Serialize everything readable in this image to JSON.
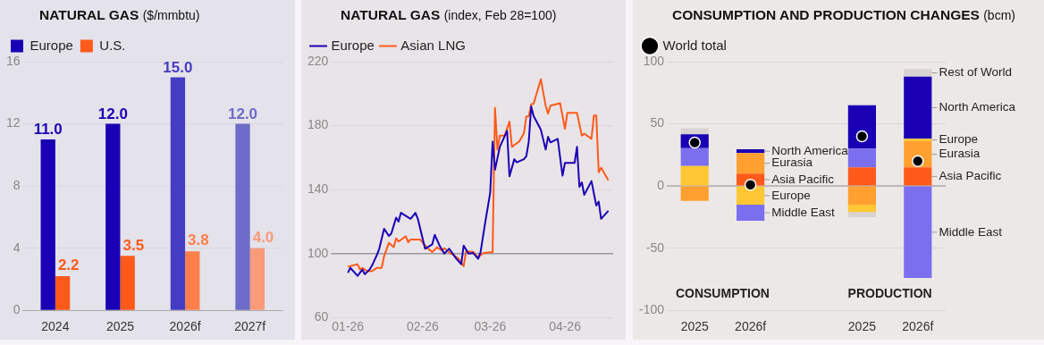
{
  "chart_data": [
    {
      "type": "bar",
      "title": "NATURAL GAS ($/mmbtu)",
      "categories": [
        "2024",
        "2025",
        "2026f",
        "2027f"
      ],
      "series": [
        {
          "name": "Europe",
          "color": "#1a00b4",
          "colors": [
            "#1a00b4",
            "#1a00b4",
            "#453cc4",
            "#6e6cc8"
          ],
          "values": [
            11,
            12,
            15,
            12
          ],
          "value_labels": [
            "11.0",
            "12.0",
            "15.0",
            "12.0"
          ]
        },
        {
          "name": "U.S.",
          "color": "#ff5a1a",
          "colors": [
            "#ff5a1a",
            "#ff5a1a",
            "#ff7f4a",
            "#f99a78"
          ],
          "values": [
            2.2,
            3.5,
            3.8,
            4
          ],
          "value_labels": [
            "2.2",
            "3.5",
            "3.8",
            "4.0"
          ]
        }
      ],
      "ylim": [
        0,
        16
      ],
      "yticks": [
        0,
        4,
        8,
        12,
        16
      ],
      "grid": "y",
      "legend": "top left"
    },
    {
      "type": "line",
      "title": "NATURAL GAS (index, Feb 28=100)",
      "series": [
        {
          "name": "Europe",
          "color": "#1a00b4",
          "x": [
            "2026-01-01",
            "2026-01-02",
            "2026-01-05",
            "2026-01-07",
            "2026-01-08",
            "2026-01-10",
            "2026-01-11",
            "2026-01-13",
            "2026-01-14",
            "2026-01-16",
            "2026-01-18",
            "2026-01-19",
            "2026-01-21",
            "2026-01-22",
            "2026-01-23",
            "2026-01-27",
            "2026-01-29",
            "2026-01-30",
            "2026-02-02",
            "2026-02-05",
            "2026-02-06",
            "2026-02-08",
            "2026-02-10",
            "2026-02-12",
            "2026-02-15",
            "2026-02-17",
            "2026-02-18",
            "2026-02-20",
            "2026-02-22",
            "2026-02-24",
            "2026-02-25",
            "2026-02-27",
            "2026-03-01",
            "2026-03-02",
            "2026-03-03",
            "2026-03-05",
            "2026-03-08",
            "2026-03-09",
            "2026-03-11",
            "2026-03-12",
            "2026-03-15",
            "2026-03-16",
            "2026-03-17",
            "2026-03-18",
            "2026-03-19",
            "2026-03-22",
            "2026-03-24",
            "2026-03-25",
            "2026-03-26",
            "2026-03-29",
            "2026-03-31",
            "2026-04-01",
            "2026-04-05",
            "2026-04-06",
            "2026-04-07",
            "2026-04-08",
            "2026-04-09",
            "2026-04-12",
            "2026-04-14",
            "2026-04-15",
            "2026-04-16",
            "2026-04-19"
          ],
          "values": [
            88,
            91,
            86,
            90,
            87,
            90,
            92.5,
            99,
            103,
            115.5,
            111,
            112.5,
            122.5,
            120,
            125.5,
            121.7,
            125.5,
            121.7,
            103,
            105.8,
            111.7,
            105,
            100,
            103,
            96.7,
            93.3,
            105,
            100,
            100.3,
            96.7,
            100.8,
            120,
            138,
            170,
            152.5,
            166.7,
            176.7,
            148.3,
            159,
            157,
            159,
            161,
            170,
            192,
            186,
            177.5,
            165,
            173,
            169.5,
            171.7,
            148.7,
            156.7,
            156.7,
            166.7,
            141.7,
            144.5,
            136.7,
            145.3,
            130,
            132.5,
            121.7,
            126.7
          ]
        },
        {
          "name": "Asian LNG",
          "color": "#ff5a1a",
          "x": [
            "2026-01-01",
            "2026-01-05",
            "2026-01-06",
            "2026-01-07",
            "2026-01-09",
            "2026-01-11",
            "2026-01-13",
            "2026-01-15",
            "2026-01-16",
            "2026-01-18",
            "2026-01-20",
            "2026-01-21",
            "2026-01-22",
            "2026-01-25",
            "2026-01-26",
            "2026-01-27",
            "2026-01-29",
            "2026-01-31",
            "2026-02-03",
            "2026-02-05",
            "2026-02-07",
            "2026-02-09",
            "2026-02-10",
            "2026-02-12",
            "2026-02-16",
            "2026-02-18",
            "2026-02-19",
            "2026-02-22",
            "2026-02-24",
            "2026-02-26",
            "2026-03-01",
            "2026-03-02",
            "2026-03-03",
            "2026-03-04",
            "2026-03-05",
            "2026-03-07",
            "2026-03-09",
            "2026-03-10",
            "2026-03-12",
            "2026-03-13",
            "2026-03-15",
            "2026-03-16",
            "2026-03-17",
            "2026-03-18",
            "2026-03-19",
            "2026-03-22",
            "2026-03-24",
            "2026-03-25",
            "2026-03-26",
            "2026-03-30",
            "2026-04-01",
            "2026-04-02",
            "2026-04-06",
            "2026-04-08",
            "2026-04-09",
            "2026-04-12",
            "2026-04-13",
            "2026-04-14",
            "2026-04-15",
            "2026-04-16",
            "2026-04-19"
          ],
          "values": [
            91.7,
            93.3,
            90,
            91,
            89,
            89,
            91,
            91,
            98.3,
            106.7,
            104,
            109.5,
            107.5,
            110.8,
            107,
            108.8,
            108.7,
            108.7,
            103.3,
            101,
            103.8,
            102,
            103.3,
            100.8,
            96.7,
            92,
            101.3,
            101,
            97.5,
            100.2,
            100.8,
            100.8,
            191,
            165,
            173.7,
            173.7,
            182.5,
            166.7,
            169,
            170,
            175.3,
            185.8,
            185.8,
            193.3,
            193.7,
            209,
            192.5,
            187.5,
            192.5,
            194,
            178,
            188,
            188,
            173.7,
            175,
            171.7,
            186.3,
            186.3,
            150.8,
            153.7,
            145.8
          ]
        }
      ],
      "xlim": [
        "2025-12-25",
        "2026-04-21"
      ],
      "xticks": [
        {
          "value": "2026-01-01",
          "label": "01-26"
        },
        {
          "value": "2026-02-01",
          "label": "02-26"
        },
        {
          "value": "2026-03-01",
          "label": "03-26"
        },
        {
          "value": "2026-04-01",
          "label": "04-26"
        }
      ],
      "ylim": [
        60,
        220
      ],
      "yticks": [
        60,
        100,
        140,
        180,
        220
      ],
      "grid": "y",
      "legend": "top left",
      "marker": "none",
      "line_style": "solid",
      "ref_lines": [
        {
          "axis": "y",
          "value": 100,
          "color": "#9a979c"
        }
      ]
    },
    {
      "type": "bar",
      "title": "CONSUMPTION AND PRODUCTION CHANGES (bcm)",
      "stacked": true,
      "categories": [
        "2025",
        "2026f",
        null,
        "2025",
        "2026f"
      ],
      "series": [
        {
          "name": "Asia Pacific",
          "color": "#ff5a1a",
          "values": [
            0,
            10,
            null,
            15,
            15
          ]
        },
        {
          "name": "Eurasia",
          "color": "#ffa030",
          "values": [
            -12,
            16.5,
            null,
            -15,
            21
          ]
        },
        {
          "name": "Europe",
          "color": "#ffc733",
          "values": [
            16,
            -15,
            null,
            -6,
            2
          ]
        },
        {
          "name": "Middle East",
          "color": "#7b6ff0",
          "values": [
            14.5,
            -13,
            null,
            15,
            -74
          ]
        },
        {
          "name": "North America",
          "color": "#1a00b4",
          "values": [
            11,
            3,
            null,
            35,
            50
          ]
        },
        {
          "name": "Rest of World",
          "color": "#d8d2d2",
          "values": [
            5,
            0,
            null,
            -4,
            6
          ]
        },
        {
          "name": "World total",
          "type": "scatter",
          "color": "#000000",
          "values": [
            35,
            1,
            null,
            40,
            20
          ]
        }
      ],
      "ylim": [
        -100,
        100
      ],
      "yticks": [
        -100,
        -50,
        0,
        50,
        100
      ],
      "grid": "y",
      "legend": "top left",
      "marker": "circle",
      "ref_lines": [
        {
          "axis": "y",
          "value": 0,
          "color": "#b0acae"
        }
      ],
      "annotations": [
        "CONSUMPTION",
        "PRODUCTION"
      ]
    }
  ]
}
